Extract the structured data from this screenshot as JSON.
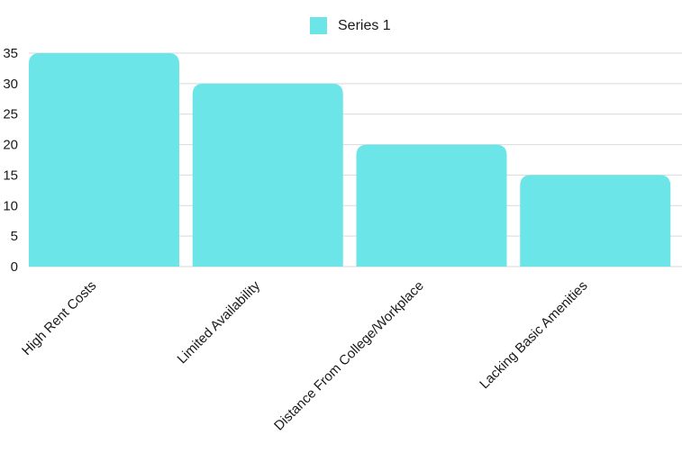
{
  "chart_data": {
    "type": "bar",
    "categories": [
      "High Rent Costs",
      "Limited Availability",
      "Distance From College/Workplace",
      "Lacking Basic Amenities"
    ],
    "series": [
      {
        "name": "Series 1",
        "values": [
          35,
          30,
          20,
          15
        ]
      }
    ],
    "ylim": [
      0,
      35
    ],
    "yticks": [
      "0",
      "5",
      "10",
      "15",
      "20",
      "25",
      "30",
      "35"
    ],
    "grid": true,
    "legend_position": "top-center",
    "bar_color": "#6ce5e8",
    "grid_color": "#d9d9d9"
  }
}
